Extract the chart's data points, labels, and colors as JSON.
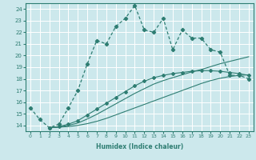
{
  "xlabel": "Humidex (Indice chaleur)",
  "ylabel": "",
  "bg_color": "#cce8ec",
  "grid_color": "#ffffff",
  "line_color": "#2e7d72",
  "xlim": [
    -0.5,
    23.5
  ],
  "ylim": [
    13.5,
    24.5
  ],
  "xticks": [
    0,
    1,
    2,
    3,
    4,
    5,
    6,
    7,
    8,
    9,
    10,
    11,
    12,
    13,
    14,
    15,
    16,
    17,
    18,
    19,
    20,
    21,
    22,
    23
  ],
  "yticks": [
    14,
    15,
    16,
    17,
    18,
    19,
    20,
    21,
    22,
    23,
    24
  ],
  "line1_x": [
    0,
    1,
    2,
    3,
    4,
    5,
    6,
    7,
    8,
    9,
    10,
    11,
    12,
    13,
    14,
    15,
    16,
    17,
    18,
    19,
    20,
    21,
    22,
    23
  ],
  "line1_y": [
    15.5,
    14.5,
    13.8,
    14.1,
    15.5,
    17.0,
    19.3,
    21.3,
    21.0,
    22.5,
    23.2,
    24.3,
    22.2,
    22.0,
    23.2,
    20.5,
    22.2,
    21.5,
    21.5,
    20.5,
    20.3,
    18.3,
    18.3,
    18.0
  ],
  "line2_x": [
    2,
    3,
    4,
    5,
    6,
    7,
    8,
    9,
    10,
    11,
    12,
    13,
    14,
    15,
    16,
    17,
    18,
    19,
    20,
    21,
    22,
    23
  ],
  "line2_y": [
    13.8,
    13.85,
    13.9,
    14.0,
    14.15,
    14.35,
    14.6,
    14.9,
    15.2,
    15.5,
    15.8,
    16.1,
    16.4,
    16.7,
    17.0,
    17.3,
    17.6,
    17.85,
    18.05,
    18.2,
    18.3,
    18.35
  ],
  "line3_x": [
    2,
    3,
    4,
    5,
    6,
    7,
    8,
    9,
    10,
    11,
    12,
    13,
    14,
    15,
    16,
    17,
    18,
    19,
    20,
    21,
    22,
    23
  ],
  "line3_y": [
    13.8,
    13.85,
    14.0,
    14.2,
    14.55,
    14.95,
    15.4,
    15.85,
    16.3,
    16.75,
    17.15,
    17.55,
    17.85,
    18.1,
    18.35,
    18.6,
    18.8,
    19.05,
    19.3,
    19.5,
    19.7,
    19.9
  ],
  "line4_x": [
    2,
    3,
    4,
    5,
    6,
    7,
    8,
    9,
    10,
    11,
    12,
    13,
    14,
    15,
    16,
    17,
    18,
    19,
    20,
    21,
    22,
    23
  ],
  "line4_y": [
    13.8,
    13.9,
    14.1,
    14.4,
    14.9,
    15.4,
    15.9,
    16.4,
    16.9,
    17.4,
    17.8,
    18.1,
    18.3,
    18.45,
    18.55,
    18.65,
    18.7,
    18.7,
    18.65,
    18.55,
    18.45,
    18.3
  ]
}
